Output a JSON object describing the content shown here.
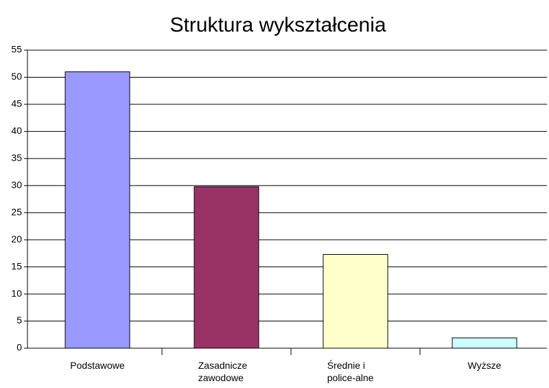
{
  "chart_data": {
    "type": "bar",
    "title": "Struktura wykształcenia",
    "categories": [
      "Podstawowe",
      "Zasadnicze zawodowe",
      "Średnie i police-alne",
      "Wyższe"
    ],
    "values": [
      51,
      29.8,
      17.3,
      1.9
    ],
    "colors": [
      "#9999ff",
      "#993366",
      "#ffffcc",
      "#ccffff"
    ],
    "ylim": [
      0,
      55
    ],
    "yticks": [
      0,
      5,
      10,
      15,
      20,
      25,
      30,
      35,
      40,
      45,
      50,
      55
    ],
    "grid": true
  }
}
